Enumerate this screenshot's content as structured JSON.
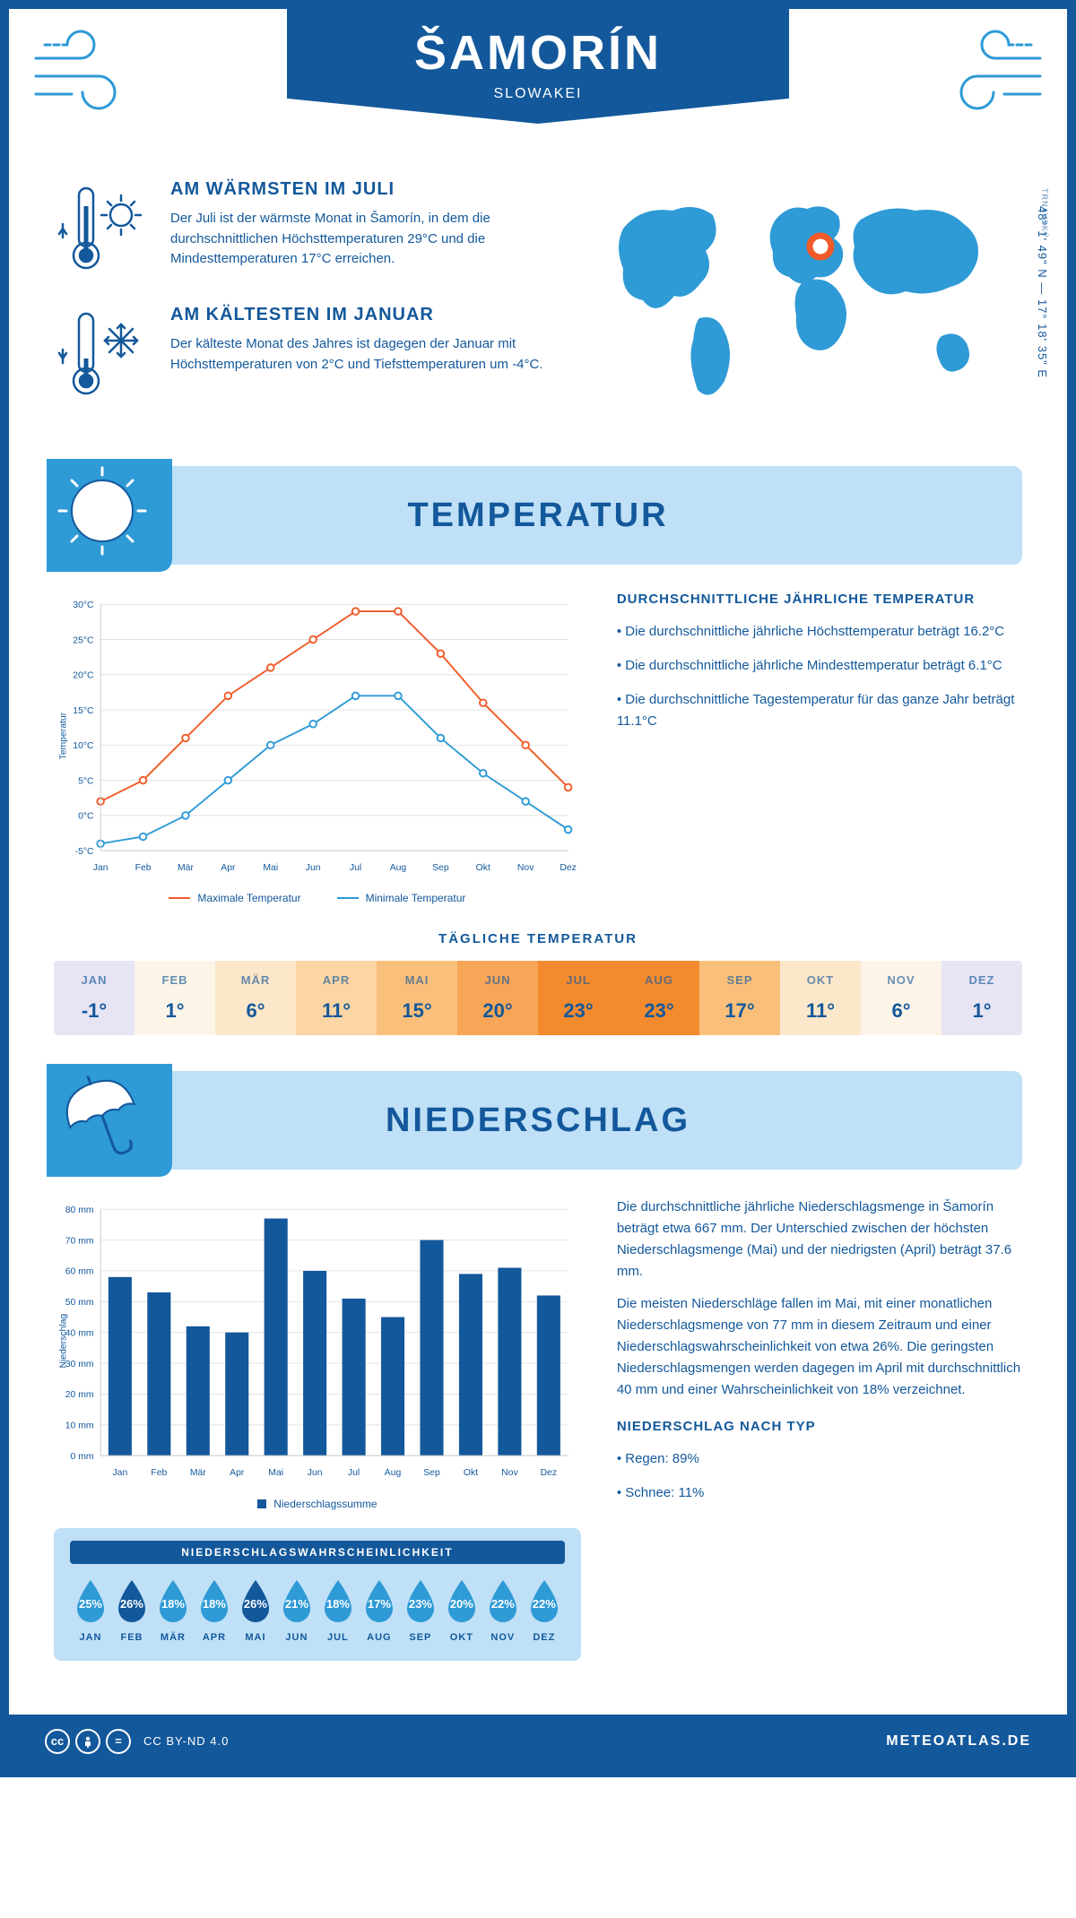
{
  "header": {
    "city": "ŠAMORÍN",
    "country": "SLOWAKEI",
    "region": "TRNAVSKÝ",
    "coords": "48° 1' 49\" N — 17° 18' 35\" E"
  },
  "facts": {
    "warm": {
      "title": "AM WÄRMSTEN IM JULI",
      "text": "Der Juli ist der wärmste Monat in Šamorín, in dem die durchschnittlichen Höchsttemperaturen 29°C und die Mindesttemperaturen 17°C erreichen."
    },
    "cold": {
      "title": "AM KÄLTESTEN IM JANUAR",
      "text": "Der kälteste Monat des Jahres ist dagegen der Januar mit Höchsttemperaturen von 2°C und Tiefsttemperaturen um -4°C."
    }
  },
  "sections": {
    "temp_title": "TEMPERATUR",
    "precip_title": "NIEDERSCHLAG"
  },
  "months": [
    "Jan",
    "Feb",
    "Mär",
    "Apr",
    "Mai",
    "Jun",
    "Jul",
    "Aug",
    "Sep",
    "Okt",
    "Nov",
    "Dez"
  ],
  "months_upper": [
    "JAN",
    "FEB",
    "MÄR",
    "APR",
    "MAI",
    "JUN",
    "JUL",
    "AUG",
    "SEP",
    "OKT",
    "NOV",
    "DEZ"
  ],
  "temp_chart": {
    "type": "line",
    "ylabel": "Temperatur",
    "ylim": [
      -5,
      30
    ],
    "ytick_step": 5,
    "ytick_suffix": "°C",
    "grid_color": "#e0e0e0",
    "background_color": "#ffffff",
    "series_max": {
      "label": "Maximale Temperatur",
      "color": "#f15a29",
      "values": [
        2,
        5,
        11,
        17,
        21,
        25,
        29,
        29,
        23,
        16,
        10,
        4
      ]
    },
    "series_min": {
      "label": "Minimale Temperatur",
      "color": "#2e9ad6",
      "values": [
        -4,
        -3,
        0,
        5,
        10,
        13,
        17,
        17,
        11,
        6,
        2,
        -2
      ]
    },
    "line_width": 2,
    "marker": "circle",
    "marker_size": 4
  },
  "temp_side": {
    "heading": "DURCHSCHNITTLICHE JÄHRLICHE TEMPERATUR",
    "b1": "Die durchschnittliche jährliche Höchsttemperatur beträgt 16.2°C",
    "b2": "Die durchschnittliche jährliche Mindesttemperatur beträgt 6.1°C",
    "b3": "Die durchschnittliche Tagestemperatur für das ganze Jahr beträgt 11.1°C"
  },
  "daily_temp": {
    "title": "TÄGLICHE TEMPERATUR",
    "values": [
      "-1°",
      "1°",
      "6°",
      "11°",
      "15°",
      "20°",
      "23°",
      "23°",
      "17°",
      "11°",
      "6°",
      "1°"
    ],
    "colors": [
      "#e7e4f4",
      "#fdf4e8",
      "#fde7ca",
      "#fbd5a3",
      "#fac07b",
      "#f7a556",
      "#f38b2e",
      "#f38b2e",
      "#fac07b",
      "#fde7ca",
      "#fdf4e8",
      "#e7e4f4"
    ]
  },
  "precip_chart": {
    "type": "bar",
    "ylabel": "Niederschlag",
    "ylim": [
      0,
      80
    ],
    "ytick_step": 10,
    "ytick_suffix": " mm",
    "bar_color": "#13589b",
    "grid_color": "#e0e0e0",
    "values": [
      58,
      53,
      42,
      40,
      77,
      60,
      51,
      45,
      70,
      59,
      61,
      52
    ],
    "legend_label": "Niederschlagssumme"
  },
  "precip_text": {
    "p1": "Die durchschnittliche jährliche Niederschlagsmenge in Šamorín beträgt etwa 667 mm. Der Unterschied zwischen der höchsten Niederschlagsmenge (Mai) und der niedrigsten (April) beträgt 37.6 mm.",
    "p2": "Die meisten Niederschläge fallen im Mai, mit einer monatlichen Niederschlagsmenge von 77 mm in diesem Zeitraum und einer Niederschlagswahrscheinlichkeit von etwa 26%. Die geringsten Niederschlagsmengen werden dagegen im April mit durchschnittlich 40 mm und einer Wahrscheinlichkeit von 18% verzeichnet.",
    "type_heading": "NIEDERSCHLAG NACH TYP",
    "type_rain": "Regen: 89%",
    "type_snow": "Schnee: 11%"
  },
  "precip_prob": {
    "title": "NIEDERSCHLAGSWAHRSCHEINLICHKEIT",
    "values": [
      "25%",
      "26%",
      "18%",
      "18%",
      "26%",
      "21%",
      "18%",
      "17%",
      "23%",
      "20%",
      "22%",
      "22%"
    ],
    "highlight": [
      false,
      true,
      false,
      false,
      true,
      false,
      false,
      false,
      false,
      false,
      false,
      false
    ],
    "drop_color": "#2e9ad6",
    "drop_highlight": "#13589b"
  },
  "footer": {
    "license": "CC BY-ND 4.0",
    "site": "METEOATLAS.DE"
  },
  "palette": {
    "primary": "#13589b",
    "light_blue": "#bfe0f7",
    "accent_blue": "#2e9ad6",
    "orange": "#f15a29"
  }
}
